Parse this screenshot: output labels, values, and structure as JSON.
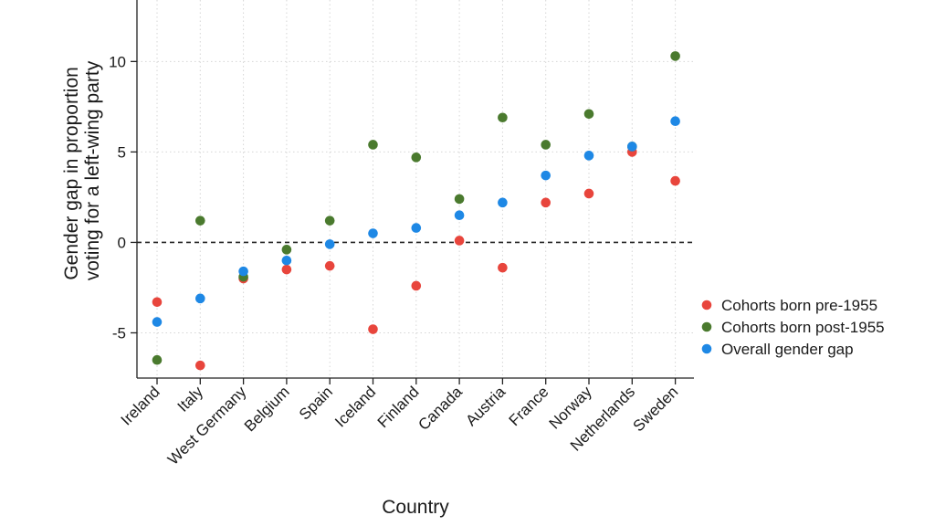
{
  "chart_data": {
    "type": "scatter",
    "xlabel": "Country",
    "ylabel_lines": [
      "Gender gap in proportion",
      "voting for a left-wing party"
    ],
    "categories": [
      "Ireland",
      "Italy",
      "West Germany",
      "Belgium",
      "Spain",
      "Iceland",
      "Finland",
      "Canada",
      "Austria",
      "France",
      "Norway",
      "Netherlands",
      "Sweden"
    ],
    "ylim": [
      -7.5,
      13.4
    ],
    "yticks": [
      -5,
      0,
      5,
      10
    ],
    "grid": true,
    "reference_line": 0,
    "legend_position": "right",
    "series": [
      {
        "name": "Cohorts born pre-1955",
        "color": "#e8453c",
        "values": [
          -3.3,
          -6.8,
          -2.0,
          -1.5,
          -1.3,
          -4.8,
          -2.4,
          0.1,
          -1.4,
          2.2,
          2.7,
          5.0,
          3.4
        ]
      },
      {
        "name": "Cohorts born post-1955",
        "color": "#4a7a2e",
        "values": [
          -6.5,
          1.2,
          -1.9,
          -0.4,
          1.2,
          5.4,
          4.7,
          2.4,
          6.9,
          5.4,
          7.1,
          5.3,
          10.3
        ]
      },
      {
        "name": "Overall gender gap",
        "color": "#1e88e5",
        "values": [
          -4.4,
          -3.1,
          -1.6,
          -1.0,
          -0.1,
          0.5,
          0.8,
          1.5,
          2.2,
          3.7,
          4.8,
          5.3,
          6.7
        ]
      }
    ]
  }
}
